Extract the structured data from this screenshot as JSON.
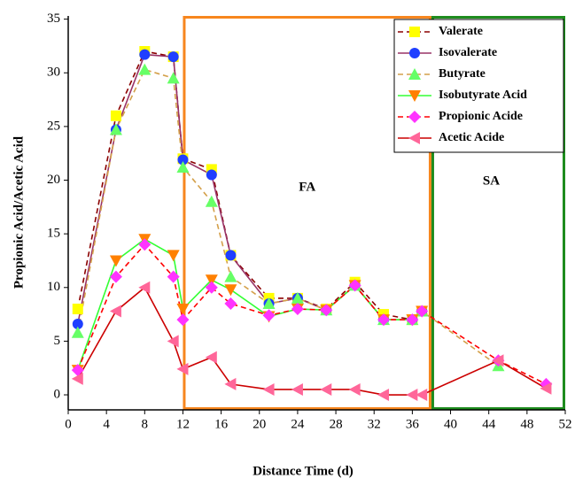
{
  "chart_data": {
    "type": "line",
    "x_label": "Distance Time (d)",
    "y_label": "Propionic Acid/Acetic Acid",
    "x": [
      1,
      5,
      8,
      11,
      12,
      15,
      17,
      21,
      24,
      27,
      30,
      33,
      36,
      37,
      45,
      50
    ],
    "series": [
      {
        "name": "Valerate",
        "color": "#ffff00",
        "line_color": "#8b0000",
        "dashed": true,
        "marker": "square",
        "values": [
          8,
          26,
          32,
          31.5,
          22,
          21,
          13,
          9,
          9,
          8,
          10.5,
          7.5,
          7,
          7.8,
          null,
          null
        ]
      },
      {
        "name": "Isovalerate",
        "color": "#1f3fff",
        "line_color": "#993366",
        "dashed": false,
        "marker": "circle",
        "values": [
          6.6,
          24.7,
          31.7,
          31.5,
          21.9,
          20.5,
          13,
          8.5,
          9,
          7.9,
          10.2,
          7,
          7,
          7.8,
          null,
          null
        ]
      },
      {
        "name": "Butyrate",
        "color": "#66ff66",
        "line_color": "#d4a04a",
        "dashed": true,
        "marker": "triangle-up",
        "values": [
          5.8,
          24.7,
          30.3,
          29.5,
          21.2,
          18,
          11,
          8.5,
          9,
          7.9,
          10.2,
          7,
          7,
          7.8,
          2.7,
          null
        ]
      },
      {
        "name": "Isobutyrate Acid",
        "color": "#ff8000",
        "line_color": "#33ff33",
        "dashed": false,
        "marker": "triangle-down",
        "values": [
          2.3,
          12.5,
          14.5,
          13,
          8,
          10.7,
          9.8,
          7.3,
          8,
          7.9,
          10.2,
          7,
          7,
          7.8,
          null,
          null
        ]
      },
      {
        "name": "Propionic Acide",
        "color": "#ff33ff",
        "line_color": "#ff0000",
        "dashed": true,
        "marker": "diamond",
        "values": [
          2.3,
          11,
          14,
          11,
          7,
          10,
          8.5,
          7.4,
          8,
          7.9,
          10.2,
          7,
          7,
          7.8,
          3.2,
          1
        ]
      },
      {
        "name": "Acetic Acide",
        "color": "#ff6699",
        "line_color": "#cc0000",
        "dashed": false,
        "marker": "triangle-left",
        "values": [
          1.5,
          7.8,
          10,
          5,
          2.4,
          3.5,
          1,
          0.5,
          0.5,
          0.5,
          0.5,
          0,
          0,
          0,
          3.2,
          0.6
        ]
      }
    ],
    "regions": [
      {
        "label": "FA",
        "x": [
          12,
          38
        ],
        "color": "#f7861e"
      },
      {
        "label": "SA",
        "x": [
          38,
          52
        ],
        "color": "#1e8c1e"
      }
    ],
    "xlim": [
      0,
      52
    ],
    "xticks": [
      0,
      4,
      8,
      12,
      16,
      20,
      24,
      28,
      32,
      36,
      40,
      44,
      48,
      52
    ],
    "ylim": [
      -1.4,
      35.3
    ],
    "yticks": [
      0,
      5,
      10,
      15,
      20,
      25,
      30,
      35
    ],
    "legend": "top-right"
  }
}
